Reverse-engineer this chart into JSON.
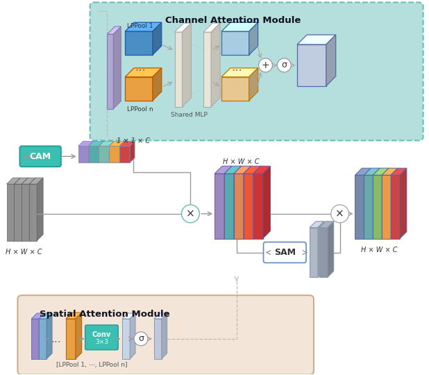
{
  "title_cam": "Channel Attention Module",
  "title_sam": "Spatial Attention Module",
  "label_lppool1": "LPPool 1",
  "label_lppooln": "LPPool n",
  "label_shared_mlp": "Shared MLP",
  "label_cam": "CAM",
  "label_sam": "SAM",
  "label_1x1xc": "1 × 1 × C",
  "label_hwxc1": "H × W × C",
  "label_hwxc2": "H × W × C",
  "label_lppool_range": "[LPPool 1, ⋯, LPPool n]",
  "cam_bg": "#aadbd8",
  "sam_bg": "#f2e4d4",
  "cam_box_stroke": "#5bb8b4",
  "sam_box_stroke": "#c4a882",
  "cam_title_color": "#111122",
  "conv_box_color": "#3bbfb0",
  "cam_box_color": "#3bbfb0",
  "arrow_color": "#999999",
  "bar_colors_1x1c": [
    "#9988cc",
    "#55aaaa",
    "#77bbaa",
    "#e8a040",
    "#cc4444"
  ],
  "hwxc_colors": [
    "#9988bb",
    "#55aaaa",
    "#dd8855",
    "#ee5533",
    "#cc3333"
  ],
  "out_colors": [
    "#7788aa",
    "#66aaaa",
    "#88bb66",
    "#ee9944",
    "#cc4444"
  ],
  "gray_slab_color": "#888888",
  "input_slab_colors": [
    "#888888",
    "#888888",
    "#888888",
    "#888888"
  ],
  "lppool1_color": "#4a8fc4",
  "lppooln_color": "#e8a040",
  "mlp_slab_color": "#e8e4d8",
  "out_box_color": "#c0cce0",
  "blue_out_color": "#a8cce0",
  "orange_out_color": "#e8c890",
  "sam_gray1": "#b0b8c8",
  "sam_gray2": "#9098a8",
  "sam_slabs": [
    "#9988cc",
    "#7bb0d0"
  ],
  "sam_orange": "#e8a040",
  "sam_slab_after": "#c8d4e8",
  "sam_slab_final": "#c0c8e0",
  "input_tall_slab": "#b0a8d0"
}
